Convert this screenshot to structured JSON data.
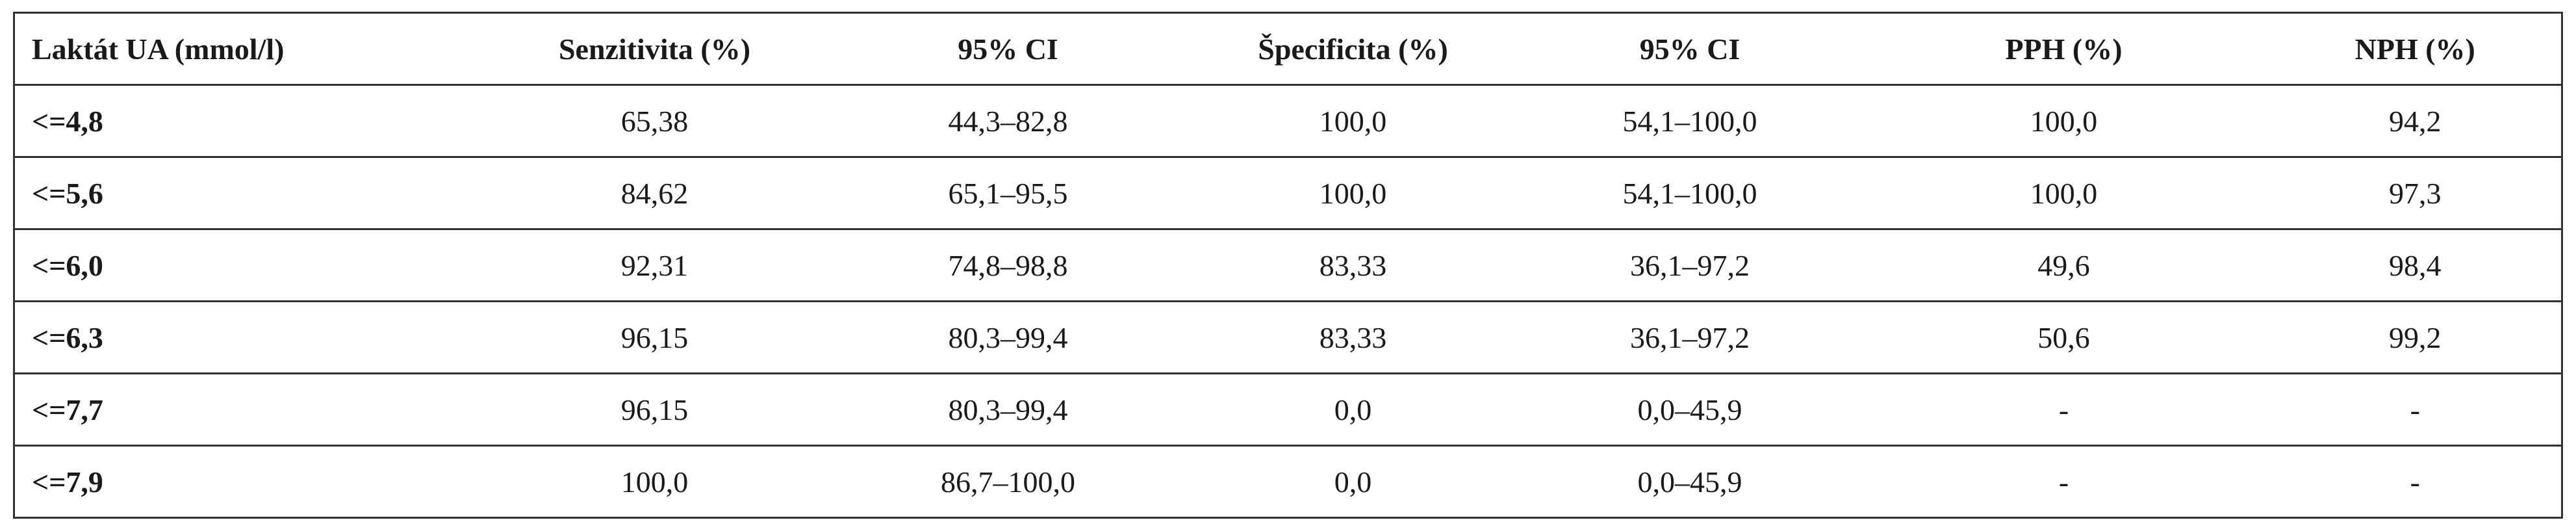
{
  "table": {
    "header": [
      "Laktát UA (mmol/l)",
      "Senzitivita (%)",
      "95% CI",
      "Špecificita (%)",
      "95% CI",
      "PPH (%)",
      "NPH (%)"
    ],
    "rows": [
      [
        "<=4,8",
        "65,38",
        "44,3–82,8",
        "100,0",
        "54,1–100,0",
        "100,0",
        "94,2"
      ],
      [
        "<=5,6",
        "84,62",
        "65,1–95,5",
        "100,0",
        "54,1–100,0",
        "100,0",
        "97,3"
      ],
      [
        "<=6,0",
        "92,31",
        "74,8–98,8",
        "83,33",
        "36,1–97,2",
        "49,6",
        "98,4"
      ],
      [
        "<=6,3",
        "96,15",
        "80,3–99,4",
        "83,33",
        "36,1–97,2",
        "50,6",
        "99,2"
      ],
      [
        "<=7,7",
        "96,15",
        "80,3–99,4",
        "0,0",
        "0,0–45,9",
        "-",
        "-"
      ],
      [
        "<=7,9",
        "100,0",
        "86,7–100,0",
        "0,0",
        "0,0–45,9",
        "-",
        "-"
      ]
    ]
  }
}
